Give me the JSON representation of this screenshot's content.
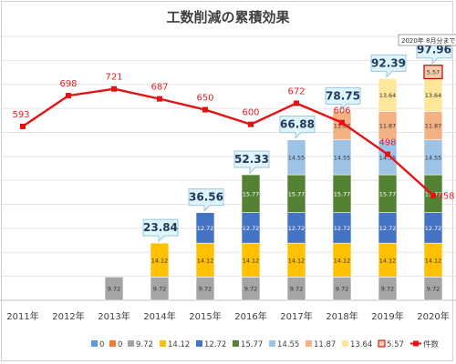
{
  "chart_data": {
    "type": "bar",
    "title": "工数削減の累積効果",
    "categories": [
      "2011年",
      "2012年",
      "2013年",
      "2014年",
      "2015年",
      "2016年",
      "2017年",
      "2018年",
      "2019年",
      "2020年"
    ],
    "stack_series": [
      {
        "name": "0",
        "color": "#5b9bd5",
        "values": [
          0,
          0,
          0,
          0,
          0,
          0,
          0,
          0,
          0,
          0
        ]
      },
      {
        "name": "0",
        "color": "#ed7d31",
        "values": [
          0,
          0,
          0,
          0,
          0,
          0,
          0,
          0,
          0,
          0
        ]
      },
      {
        "name": "9.72",
        "color": "#a5a5a5",
        "values": [
          0,
          0,
          9.72,
          9.72,
          9.72,
          9.72,
          9.72,
          9.72,
          9.72,
          9.72
        ]
      },
      {
        "name": "14.12",
        "color": "#ffc000",
        "values": [
          0,
          0,
          0,
          14.12,
          14.12,
          14.12,
          14.12,
          14.12,
          14.12,
          14.12
        ]
      },
      {
        "name": "12.72",
        "color": "#4472c4",
        "values": [
          0,
          0,
          0,
          0,
          12.72,
          12.72,
          12.72,
          12.72,
          12.72,
          12.72
        ]
      },
      {
        "name": "15.77",
        "color": "#548235",
        "values": [
          0,
          0,
          0,
          0,
          0,
          15.77,
          15.77,
          15.77,
          15.77,
          15.77
        ]
      },
      {
        "name": "14.55",
        "color": "#9dc3e6",
        "values": [
          0,
          0,
          0,
          0,
          0,
          0,
          14.55,
          14.55,
          14.55,
          14.55
        ]
      },
      {
        "name": "11.87",
        "color": "#f4b183",
        "values": [
          0,
          0,
          0,
          0,
          0,
          0,
          0,
          11.87,
          11.87,
          11.87
        ]
      },
      {
        "name": "13.64",
        "color": "#ffe699",
        "values": [
          0,
          0,
          0,
          0,
          0,
          0,
          0,
          0,
          13.64,
          13.64
        ]
      },
      {
        "name": "5.57",
        "color": "#f8cbad",
        "values": [
          0,
          0,
          0,
          0,
          0,
          0,
          0,
          0,
          0,
          5.57
        ]
      }
    ],
    "totals": [
      null,
      null,
      null,
      23.84,
      36.56,
      52.33,
      66.88,
      78.75,
      92.39,
      97.96
    ],
    "line_series": {
      "name": "件数",
      "color": "#e81010",
      "values": [
        593,
        698,
        721,
        687,
        650,
        600,
        672,
        606,
        498,
        358
      ]
    },
    "bar_ylim": [
      0,
      110
    ],
    "line_ylim": [
      0,
      900
    ],
    "annotation": "2020年 8月分まで",
    "legend_position": "bottom",
    "grid": true
  }
}
